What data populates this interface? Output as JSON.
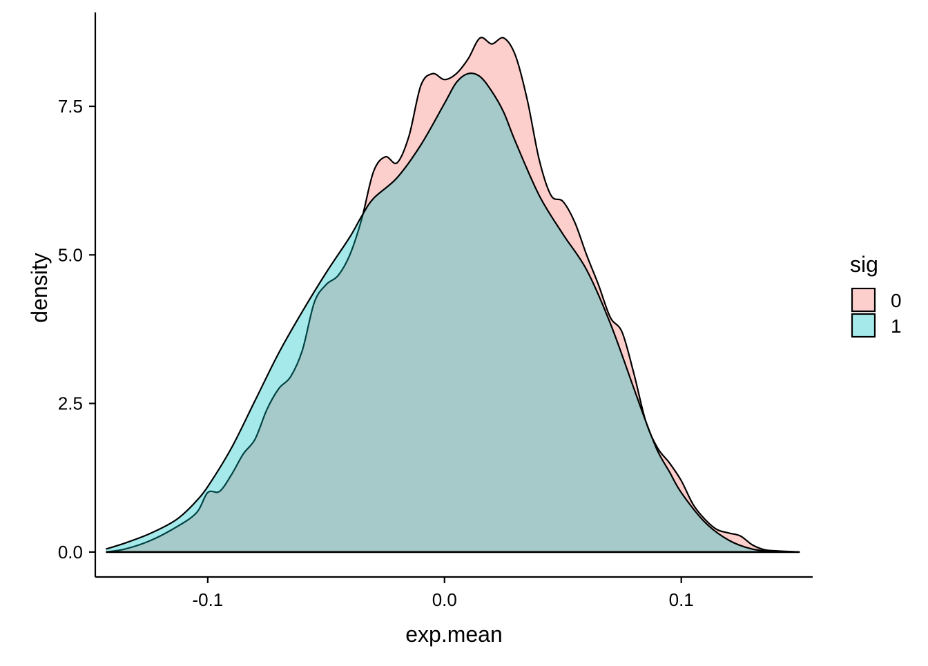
{
  "chart_data": {
    "type": "area",
    "subtype": "density",
    "xlabel": "exp.mean",
    "ylabel": "density",
    "xlim": [
      -0.1475,
      0.1555
    ],
    "ylim": [
      -0.42,
      9.08
    ],
    "x_ticks": [
      -0.1,
      0.0,
      0.1
    ],
    "x_tick_labels": [
      "-0.1",
      "0.0",
      "0.1"
    ],
    "y_ticks": [
      0.0,
      2.5,
      5.0,
      7.5
    ],
    "y_tick_labels": [
      "0.0",
      "2.5",
      "5.0",
      "7.5"
    ],
    "grid": false,
    "legend": {
      "title": "sig",
      "position": "right",
      "entries": [
        "0",
        "1"
      ]
    },
    "colors": {
      "0": "#F8766D",
      "1": "#00BFC4"
    },
    "fill_opacity": 0.35,
    "series": [
      {
        "name": "0",
        "points": [
          [
            -0.143,
            0.0
          ],
          [
            -0.135,
            0.05
          ],
          [
            -0.125,
            0.18
          ],
          [
            -0.115,
            0.38
          ],
          [
            -0.105,
            0.65
          ],
          [
            -0.1,
            1.0
          ],
          [
            -0.095,
            1.02
          ],
          [
            -0.09,
            1.3
          ],
          [
            -0.085,
            1.65
          ],
          [
            -0.08,
            1.9
          ],
          [
            -0.075,
            2.4
          ],
          [
            -0.07,
            2.75
          ],
          [
            -0.065,
            2.95
          ],
          [
            -0.06,
            3.4
          ],
          [
            -0.055,
            4.2
          ],
          [
            -0.05,
            4.5
          ],
          [
            -0.045,
            4.65
          ],
          [
            -0.04,
            5.0
          ],
          [
            -0.035,
            5.6
          ],
          [
            -0.03,
            6.4
          ],
          [
            -0.025,
            6.65
          ],
          [
            -0.02,
            6.55
          ],
          [
            -0.015,
            7.0
          ],
          [
            -0.01,
            7.85
          ],
          [
            -0.005,
            8.05
          ],
          [
            0.0,
            7.95
          ],
          [
            0.005,
            8.05
          ],
          [
            0.01,
            8.3
          ],
          [
            0.015,
            8.65
          ],
          [
            0.02,
            8.55
          ],
          [
            0.025,
            8.65
          ],
          [
            0.03,
            8.35
          ],
          [
            0.035,
            7.6
          ],
          [
            0.04,
            6.6
          ],
          [
            0.045,
            6.0
          ],
          [
            0.05,
            5.9
          ],
          [
            0.055,
            5.55
          ],
          [
            0.06,
            5.0
          ],
          [
            0.065,
            4.5
          ],
          [
            0.07,
            3.95
          ],
          [
            0.075,
            3.7
          ],
          [
            0.08,
            3.0
          ],
          [
            0.085,
            2.2
          ],
          [
            0.09,
            1.75
          ],
          [
            0.095,
            1.5
          ],
          [
            0.1,
            1.2
          ],
          [
            0.105,
            0.8
          ],
          [
            0.11,
            0.55
          ],
          [
            0.115,
            0.38
          ],
          [
            0.12,
            0.32
          ],
          [
            0.125,
            0.27
          ],
          [
            0.13,
            0.12
          ],
          [
            0.135,
            0.04
          ],
          [
            0.14,
            0.02
          ],
          [
            0.15,
            0.0
          ]
        ]
      },
      {
        "name": "1",
        "points": [
          [
            -0.143,
            0.05
          ],
          [
            -0.135,
            0.15
          ],
          [
            -0.125,
            0.3
          ],
          [
            -0.115,
            0.5
          ],
          [
            -0.11,
            0.65
          ],
          [
            -0.105,
            0.85
          ],
          [
            -0.1,
            1.1
          ],
          [
            -0.09,
            1.75
          ],
          [
            -0.08,
            2.55
          ],
          [
            -0.07,
            3.35
          ],
          [
            -0.06,
            4.05
          ],
          [
            -0.05,
            4.7
          ],
          [
            -0.04,
            5.3
          ],
          [
            -0.035,
            5.65
          ],
          [
            -0.03,
            5.95
          ],
          [
            -0.02,
            6.3
          ],
          [
            -0.01,
            6.85
          ],
          [
            0.0,
            7.55
          ],
          [
            0.005,
            7.9
          ],
          [
            0.01,
            8.05
          ],
          [
            0.015,
            8.0
          ],
          [
            0.02,
            7.75
          ],
          [
            0.025,
            7.4
          ],
          [
            0.03,
            6.9
          ],
          [
            0.04,
            6.0
          ],
          [
            0.05,
            5.35
          ],
          [
            0.06,
            4.75
          ],
          [
            0.07,
            3.85
          ],
          [
            0.08,
            2.75
          ],
          [
            0.085,
            2.2
          ],
          [
            0.09,
            1.7
          ],
          [
            0.095,
            1.35
          ],
          [
            0.1,
            1.0
          ],
          [
            0.11,
            0.5
          ],
          [
            0.12,
            0.2
          ],
          [
            0.13,
            0.05
          ],
          [
            0.14,
            0.01
          ],
          [
            0.15,
            0.0
          ]
        ]
      }
    ]
  }
}
